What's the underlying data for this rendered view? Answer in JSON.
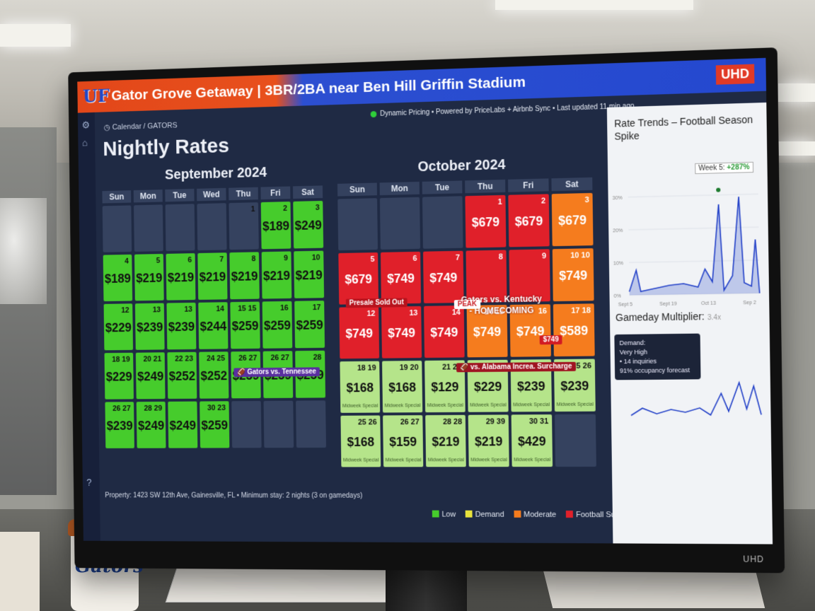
{
  "app": {
    "title": "Gator Grove Getaway | 3BR/2BA near Ben Hill Griffin Stadium",
    "logo": "UF",
    "badge": "UHD",
    "bezel_brand": "UHD"
  },
  "status_line": "Dynamic Pricing • Powered by PriceLabs + Airbnb Sync • Last updated 11 min ago",
  "breadcrumb": "Calendar / GATORS",
  "page_title": "Nightly Rates",
  "september": {
    "title": "September 2024",
    "dows": [
      "Sun",
      "Mon",
      "Tue",
      "Wed",
      "Thu",
      "Fri",
      "Sat"
    ],
    "cells": [
      {
        "d": "",
        "p": "",
        "c": "empty"
      },
      {
        "d": "",
        "p": "",
        "c": "empty"
      },
      {
        "d": "",
        "p": "",
        "c": "empty"
      },
      {
        "d": "",
        "p": "",
        "c": "empty"
      },
      {
        "d": "1",
        "p": "",
        "c": "empty"
      },
      {
        "d": "2",
        "p": "$189",
        "c": "g"
      },
      {
        "d": "3",
        "p": "$249",
        "c": "g"
      },
      {
        "d": "4",
        "p": "$189",
        "c": "g"
      },
      {
        "d": "5",
        "p": "$219",
        "c": "g"
      },
      {
        "d": "6",
        "p": "$219",
        "c": "g"
      },
      {
        "d": "7",
        "p": "$219",
        "c": "g"
      },
      {
        "d": "8",
        "p": "$219",
        "c": "g"
      },
      {
        "d": "9",
        "p": "$219",
        "c": "g"
      },
      {
        "d": "10",
        "p": "$219",
        "c": "g"
      },
      {
        "d": "12",
        "p": "$229",
        "c": "g"
      },
      {
        "d": "13",
        "p": "$239",
        "c": "g"
      },
      {
        "d": "13",
        "p": "$239",
        "c": "g"
      },
      {
        "d": "14",
        "p": "$244",
        "c": "g"
      },
      {
        "d": "15 15",
        "p": "$259",
        "c": "g"
      },
      {
        "d": "16",
        "p": "$259",
        "c": "g"
      },
      {
        "d": "17",
        "p": "$259",
        "c": "g"
      },
      {
        "d": "18 19",
        "p": "$229",
        "c": "g"
      },
      {
        "d": "20 21",
        "p": "$249",
        "c": "g"
      },
      {
        "d": "22 23",
        "p": "$252",
        "c": "g"
      },
      {
        "d": "24 25",
        "p": "$252",
        "c": "g"
      },
      {
        "d": "26 27",
        "p": "$259",
        "c": "g"
      },
      {
        "d": "26 27",
        "p": "$259",
        "c": "g"
      },
      {
        "d": "28",
        "p": "$259",
        "c": "g"
      },
      {
        "d": "26 27",
        "p": "$239",
        "c": "g"
      },
      {
        "d": "28 29",
        "p": "$249",
        "c": "g"
      },
      {
        "d": "",
        "p": "$249",
        "c": "g"
      },
      {
        "d": "30 23",
        "p": "$259",
        "c": "g"
      },
      {
        "d": "",
        "p": "",
        "c": "empty"
      },
      {
        "d": "",
        "p": "",
        "c": "empty"
      },
      {
        "d": "",
        "p": "",
        "c": "empty"
      }
    ],
    "event_label": "Gators vs. Tennessee"
  },
  "october": {
    "title": "October 2024",
    "dows": [
      "Sun",
      "Mon",
      "Tue",
      "Thu",
      "Fri",
      "Sat"
    ],
    "cells": [
      {
        "d": "",
        "p": "",
        "c": "empty",
        "n": ""
      },
      {
        "d": "",
        "p": "",
        "c": "empty",
        "n": ""
      },
      {
        "d": "",
        "p": "",
        "c": "empty",
        "n": ""
      },
      {
        "d": "1",
        "p": "$679",
        "c": "r",
        "n": ""
      },
      {
        "d": "2",
        "p": "$679",
        "c": "r",
        "n": ""
      },
      {
        "d": "3",
        "p": "$679",
        "c": "o",
        "n": ""
      },
      {
        "d": "5",
        "p": "$679",
        "c": "r",
        "n": ""
      },
      {
        "d": "6",
        "p": "$749",
        "c": "r",
        "n": ""
      },
      {
        "d": "7",
        "p": "$749",
        "c": "r",
        "n": ""
      },
      {
        "d": "8",
        "p": "",
        "c": "r",
        "n": ""
      },
      {
        "d": "9",
        "p": "",
        "c": "r",
        "n": ""
      },
      {
        "d": "10 10",
        "p": "$749",
        "c": "o",
        "n": ""
      },
      {
        "d": "12",
        "p": "$749",
        "c": "r",
        "n": ""
      },
      {
        "d": "13",
        "p": "$749",
        "c": "r",
        "n": ""
      },
      {
        "d": "14",
        "p": "$749",
        "c": "r",
        "n": ""
      },
      {
        "d": "14 15",
        "p": "$749",
        "c": "o",
        "n": ""
      },
      {
        "d": "16",
        "p": "$749",
        "c": "o",
        "n": ""
      },
      {
        "d": "17 18",
        "p": "$589",
        "c": "o",
        "n": ""
      },
      {
        "d": "18 19",
        "p": "$168",
        "c": "lg",
        "n": "Midweek Special"
      },
      {
        "d": "19 20",
        "p": "$168",
        "c": "lg",
        "n": "Midweek Special"
      },
      {
        "d": "21 21",
        "p": "$129",
        "c": "lg",
        "n": "Midweek Special"
      },
      {
        "d": "22 23",
        "p": "$229",
        "c": "lg",
        "n": "Midweek Special"
      },
      {
        "d": "24 24",
        "p": "$239",
        "c": "lg",
        "n": "Midweek Special"
      },
      {
        "d": "25 26",
        "p": "$239",
        "c": "lg",
        "n": "Midweek Special"
      },
      {
        "d": "25 26",
        "p": "$168",
        "c": "lg",
        "n": "Midweek Special"
      },
      {
        "d": "26 27",
        "p": "$159",
        "c": "lg",
        "n": "Midweek Special"
      },
      {
        "d": "28 28",
        "p": "$219",
        "c": "lg",
        "n": "Midweek Special"
      },
      {
        "d": "29 39",
        "p": "$219",
        "c": "lg",
        "n": "Midweek Special"
      },
      {
        "d": "30 31",
        "p": "$429",
        "c": "lg",
        "n": "Midweek Special"
      },
      {
        "d": "",
        "p": "",
        "c": "empty",
        "n": ""
      }
    ],
    "homecoming": "Gators vs. Kentucky - HOMECOMING",
    "peak_label": "PEAK",
    "sold_label": "Presale Sold Out",
    "alabama_label": "vs. Alabama Increa. Surcharge",
    "strike_price": "$749"
  },
  "footer": "Property: 1423 SW 12th Ave, Gainesville, FL • Minimum stay: 2 nights (3 on gamedays)",
  "legend": [
    {
      "label": "Low",
      "color": "#46cc2c"
    },
    {
      "label": "Demand",
      "color": "#e8e23c"
    },
    {
      "label": "Moderate",
      "color": "#f57c1e"
    },
    {
      "label": "Football Surge",
      "color": "#e0202a"
    }
  ],
  "panel": {
    "trend_title": "Rate Trends – Football Season Spike",
    "week_badge_prefix": "Week 5:",
    "week_badge_value": "+287%",
    "multiplier_title": "Gameday Multiplier:",
    "multiplier_value": "3.4x",
    "tooltip": [
      "Demand:",
      "Very High",
      "• 14 inquiries",
      "91% occupancy forecast"
    ],
    "x_ticks": [
      "Sept 5",
      "Sept 19",
      "Oct 13",
      "Sep 2"
    ],
    "y_ticks": [
      "0%",
      "10%",
      "20%",
      "30%"
    ]
  }
}
